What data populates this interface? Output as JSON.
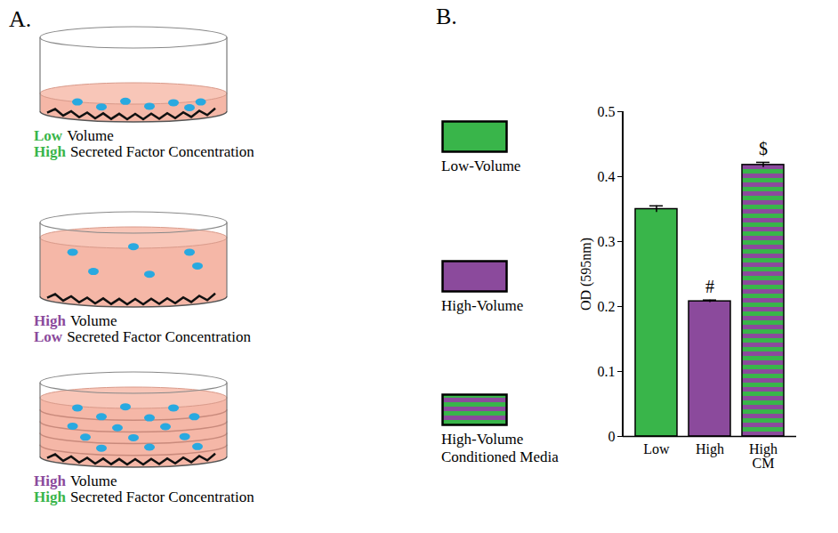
{
  "panel_a": {
    "label": "A.",
    "dishes": [
      {
        "volume": "Low",
        "volume_color": "#39b54a",
        "volume_text": "Volume",
        "concentration": "High",
        "concentration_color": "#39b54a",
        "concentration_text": "Secreted Factor Concentration"
      },
      {
        "volume": "High",
        "volume_color": "#8b4a9c",
        "volume_text": "Volume",
        "concentration": "Low",
        "concentration_color": "#8b4a9c",
        "concentration_text": "Secreted Factor Concentration"
      },
      {
        "volume": "High",
        "volume_color": "#8b4a9c",
        "volume_text": "Volume",
        "concentration": "High",
        "concentration_color": "#39b54a",
        "concentration_text": "Secreted Factor Concentration"
      }
    ]
  },
  "chart_data": {
    "panel_label": "B.",
    "type": "bar",
    "categories": [
      "Low",
      "High",
      "High CM"
    ],
    "series": [
      {
        "name": "Low-Volume",
        "color": "#39b54a",
        "values": [
          0.35,
          null,
          null
        ],
        "errors": [
          0.005,
          null,
          null
        ]
      },
      {
        "name": "High-Volume",
        "color": "#8b4a9c",
        "values": [
          null,
          0.208,
          null
        ],
        "errors": [
          null,
          0.002,
          null
        ]
      },
      {
        "name": "High-Volume Conditioned Media",
        "color": [
          "#39b54a",
          "#8b4a9c"
        ],
        "values": [
          null,
          null,
          0.418
        ],
        "errors": [
          null,
          null,
          0.004
        ]
      }
    ],
    "ylabel": "OD (595nm)",
    "ylim": [
      0,
      0.5
    ],
    "yticks": [
      0,
      0.1,
      0.2,
      0.3,
      0.4,
      0.5
    ],
    "legend": "left",
    "annotations": [
      {
        "text": "#",
        "category": "High"
      },
      {
        "text": "$",
        "category": "High CM"
      }
    ]
  }
}
